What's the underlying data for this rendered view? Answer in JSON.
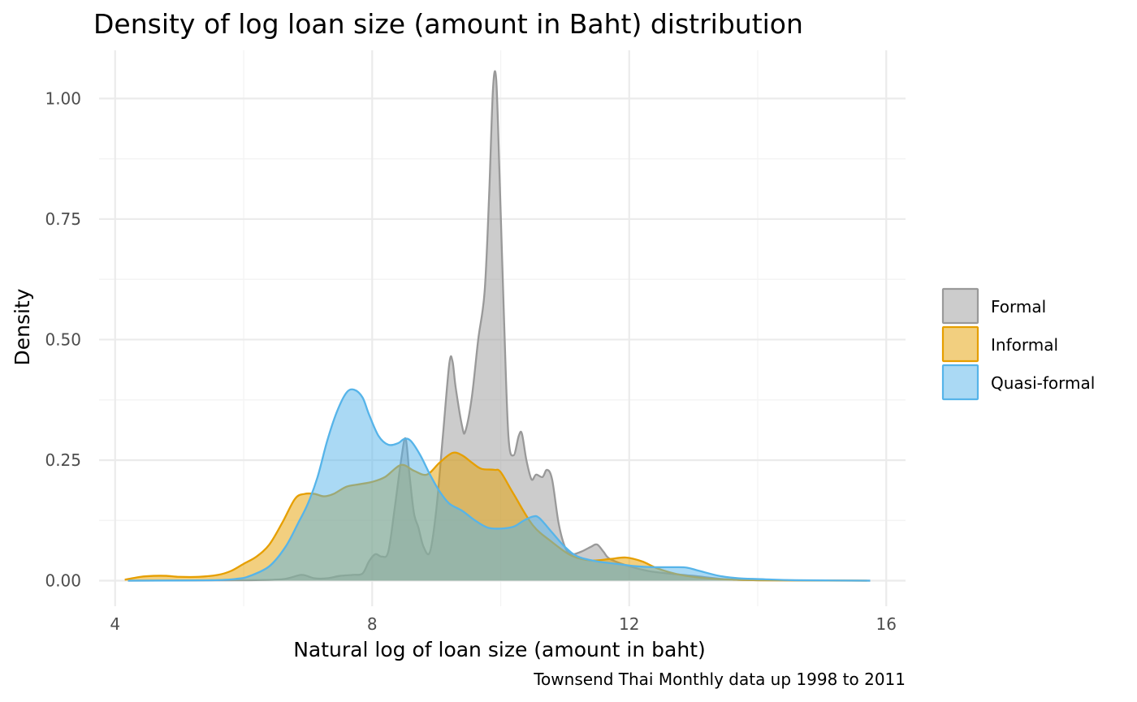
{
  "chart_data": {
    "type": "area",
    "title": "Density of log loan size (amount in Baht) distribution",
    "xlabel": "Natural log of loan size (amount in baht)",
    "ylabel": "Density",
    "caption": "Townsend Thai Monthly data up 1998 to 2011",
    "xlim": [
      3.75,
      16.3
    ],
    "ylim": [
      -0.053,
      1.1
    ],
    "x_ticks": [
      4,
      8,
      12,
      16
    ],
    "x_tick_labels": [
      "4",
      "8",
      "12",
      "16"
    ],
    "y_ticks": [
      0,
      0.25,
      0.5,
      0.75,
      1
    ],
    "y_tick_labels": [
      "0.00",
      "0.25",
      "0.50",
      "0.75",
      "1.00"
    ],
    "grid": true,
    "legend": {
      "position": "right",
      "entries": [
        "Formal",
        "Informal",
        "Quasi-formal"
      ]
    },
    "series": [
      {
        "name": "Formal",
        "fill": "#999999",
        "stroke": "#999999",
        "points": [
          [
            4.2,
            0
          ],
          [
            6,
            0.001
          ],
          [
            6.6,
            0.003
          ],
          [
            6.9,
            0.012
          ],
          [
            7.1,
            0.005
          ],
          [
            7.3,
            0.005
          ],
          [
            7.5,
            0.01
          ],
          [
            7.7,
            0.012
          ],
          [
            7.85,
            0.015
          ],
          [
            7.95,
            0.04
          ],
          [
            8.05,
            0.055
          ],
          [
            8.15,
            0.05
          ],
          [
            8.25,
            0.06
          ],
          [
            8.35,
            0.15
          ],
          [
            8.45,
            0.25
          ],
          [
            8.52,
            0.295
          ],
          [
            8.58,
            0.22
          ],
          [
            8.65,
            0.14
          ],
          [
            8.72,
            0.11
          ],
          [
            8.8,
            0.07
          ],
          [
            8.9,
            0.06
          ],
          [
            9,
            0.15
          ],
          [
            9.1,
            0.3
          ],
          [
            9.2,
            0.45
          ],
          [
            9.25,
            0.455
          ],
          [
            9.3,
            0.4
          ],
          [
            9.4,
            0.32
          ],
          [
            9.45,
            0.31
          ],
          [
            9.55,
            0.38
          ],
          [
            9.65,
            0.5
          ],
          [
            9.75,
            0.6
          ],
          [
            9.82,
            0.8
          ],
          [
            9.88,
            1.02
          ],
          [
            9.93,
            1.04
          ],
          [
            9.98,
            0.85
          ],
          [
            10.05,
            0.55
          ],
          [
            10.12,
            0.3
          ],
          [
            10.2,
            0.26
          ],
          [
            10.28,
            0.3
          ],
          [
            10.33,
            0.305
          ],
          [
            10.4,
            0.25
          ],
          [
            10.48,
            0.21
          ],
          [
            10.55,
            0.22
          ],
          [
            10.65,
            0.215
          ],
          [
            10.72,
            0.23
          ],
          [
            10.8,
            0.21
          ],
          [
            10.9,
            0.12
          ],
          [
            11,
            0.07
          ],
          [
            11.1,
            0.055
          ],
          [
            11.25,
            0.06
          ],
          [
            11.4,
            0.07
          ],
          [
            11.5,
            0.075
          ],
          [
            11.6,
            0.06
          ],
          [
            11.7,
            0.045
          ],
          [
            12,
            0.03
          ],
          [
            12.3,
            0.02
          ],
          [
            12.6,
            0.015
          ],
          [
            13,
            0.01
          ],
          [
            13.5,
            0.003
          ],
          [
            14,
            0.001
          ],
          [
            15.75,
            0
          ]
        ]
      },
      {
        "name": "Informal",
        "fill": "#E69F00",
        "stroke": "#E69F00",
        "points": [
          [
            4.15,
            0.002
          ],
          [
            4.4,
            0.008
          ],
          [
            4.6,
            0.01
          ],
          [
            4.8,
            0.01
          ],
          [
            5,
            0.008
          ],
          [
            5.3,
            0.008
          ],
          [
            5.6,
            0.012
          ],
          [
            5.8,
            0.02
          ],
          [
            6,
            0.035
          ],
          [
            6.2,
            0.05
          ],
          [
            6.4,
            0.075
          ],
          [
            6.6,
            0.12
          ],
          [
            6.8,
            0.17
          ],
          [
            6.95,
            0.18
          ],
          [
            7.1,
            0.18
          ],
          [
            7.25,
            0.175
          ],
          [
            7.4,
            0.18
          ],
          [
            7.6,
            0.195
          ],
          [
            7.8,
            0.2
          ],
          [
            8,
            0.205
          ],
          [
            8.2,
            0.215
          ],
          [
            8.45,
            0.24
          ],
          [
            8.65,
            0.228
          ],
          [
            8.85,
            0.22
          ],
          [
            9.05,
            0.245
          ],
          [
            9.25,
            0.265
          ],
          [
            9.4,
            0.26
          ],
          [
            9.55,
            0.245
          ],
          [
            9.7,
            0.232
          ],
          [
            9.9,
            0.23
          ],
          [
            10,
            0.225
          ],
          [
            10.2,
            0.18
          ],
          [
            10.5,
            0.115
          ],
          [
            10.8,
            0.08
          ],
          [
            11.1,
            0.052
          ],
          [
            11.4,
            0.042
          ],
          [
            11.7,
            0.045
          ],
          [
            11.95,
            0.048
          ],
          [
            12.2,
            0.04
          ],
          [
            12.45,
            0.025
          ],
          [
            12.8,
            0.012
          ],
          [
            13.2,
            0.005
          ],
          [
            13.6,
            0.002
          ],
          [
            14,
            0.001
          ],
          [
            15.7,
            0
          ]
        ]
      },
      {
        "name": "Quasi-formal",
        "fill": "#56B4E9",
        "stroke": "#56B4E9",
        "points": [
          [
            4.2,
            0
          ],
          [
            5.5,
            0.001
          ],
          [
            5.9,
            0.004
          ],
          [
            6.1,
            0.01
          ],
          [
            6.4,
            0.03
          ],
          [
            6.65,
            0.07
          ],
          [
            6.85,
            0.12
          ],
          [
            7,
            0.16
          ],
          [
            7.15,
            0.215
          ],
          [
            7.3,
            0.29
          ],
          [
            7.45,
            0.35
          ],
          [
            7.6,
            0.39
          ],
          [
            7.72,
            0.396
          ],
          [
            7.85,
            0.38
          ],
          [
            7.95,
            0.345
          ],
          [
            8.1,
            0.3
          ],
          [
            8.25,
            0.282
          ],
          [
            8.4,
            0.285
          ],
          [
            8.5,
            0.294
          ],
          [
            8.6,
            0.29
          ],
          [
            8.75,
            0.26
          ],
          [
            8.9,
            0.22
          ],
          [
            9.05,
            0.185
          ],
          [
            9.2,
            0.16
          ],
          [
            9.4,
            0.145
          ],
          [
            9.6,
            0.125
          ],
          [
            9.8,
            0.11
          ],
          [
            10,
            0.108
          ],
          [
            10.2,
            0.112
          ],
          [
            10.35,
            0.124
          ],
          [
            10.5,
            0.133
          ],
          [
            10.6,
            0.13
          ],
          [
            10.8,
            0.1
          ],
          [
            11,
            0.07
          ],
          [
            11.2,
            0.05
          ],
          [
            11.5,
            0.04
          ],
          [
            11.8,
            0.035
          ],
          [
            12.1,
            0.03
          ],
          [
            12.4,
            0.028
          ],
          [
            12.7,
            0.028
          ],
          [
            12.9,
            0.027
          ],
          [
            13.1,
            0.02
          ],
          [
            13.4,
            0.01
          ],
          [
            13.7,
            0.005
          ],
          [
            14.1,
            0.003
          ],
          [
            14.6,
            0.001
          ],
          [
            15.75,
            0
          ]
        ]
      }
    ]
  }
}
